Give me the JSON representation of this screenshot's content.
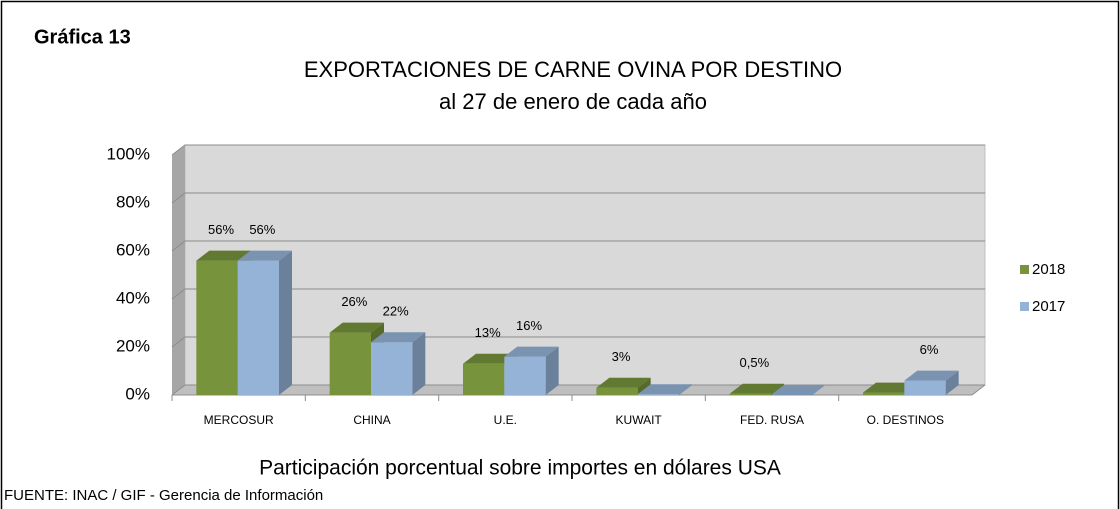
{
  "header": "Gráfica 13",
  "chart_data": {
    "type": "bar3d",
    "title": "EXPORTACIONES DE CARNE OVINA POR DESTINO",
    "subtitle": "al 27 de enero  de cada año",
    "xlabel": "Participación porcentual sobre importes en dólares USA",
    "categories": [
      "MERCOSUR",
      "CHINA",
      "U.E.",
      "KUWAIT",
      "FED. RUSA",
      "O. DESTINOS"
    ],
    "series": [
      {
        "name": "2018",
        "color": "#77933c",
        "values": [
          56,
          26,
          13,
          3,
          0.5,
          1
        ],
        "value_labels": [
          "56%",
          "26%",
          "13%",
          "3%",
          "0,5%",
          null
        ]
      },
      {
        "name": "2017",
        "color": "#95b3d7",
        "values": [
          56,
          22,
          16,
          0.3,
          0,
          6
        ],
        "value_labels": [
          "56%",
          "22%",
          "16%",
          null,
          null,
          "6%"
        ]
      }
    ],
    "ylim": [
      0,
      100
    ],
    "yticks": [
      {
        "value": 0,
        "label": "0%"
      },
      {
        "value": 20,
        "label": "20%"
      },
      {
        "value": 40,
        "label": "40%"
      },
      {
        "value": 60,
        "label": "60%"
      },
      {
        "value": 80,
        "label": "80%"
      },
      {
        "value": 100,
        "label": "100%"
      }
    ],
    "grid": true,
    "legend": "right"
  },
  "source": "FUENTE: INAC / GIF - Gerencia de Información"
}
